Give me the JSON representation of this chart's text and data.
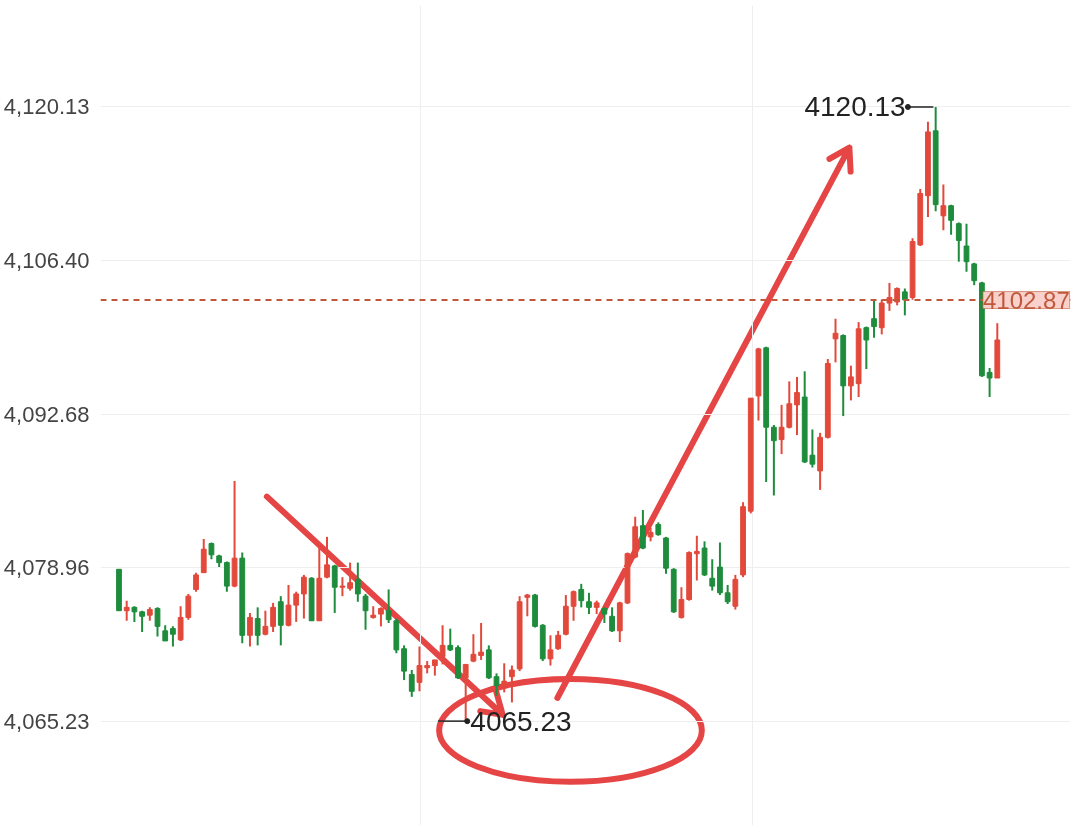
{
  "chart_data": {
    "type": "candlestick",
    "categories": [
      null,
      null,
      null,
      null,
      null,
      null,
      null,
      null,
      null,
      null,
      null,
      null,
      null,
      null,
      null,
      null,
      null,
      null,
      null,
      null,
      null,
      null,
      null,
      null,
      null,
      null,
      null,
      null,
      null,
      null,
      null,
      null,
      null,
      null,
      null,
      null,
      null,
      null,
      null,
      null,
      null,
      null,
      null,
      null,
      null,
      null,
      null,
      null,
      null,
      null,
      null,
      null,
      null,
      null,
      null,
      null,
      null,
      null,
      null,
      null,
      null,
      null,
      null,
      null,
      null,
      null,
      null,
      null,
      null,
      null,
      null,
      null,
      null,
      null,
      null,
      null,
      null,
      null,
      null,
      null,
      null,
      null,
      null,
      null,
      null,
      null,
      null,
      null,
      null,
      null,
      null,
      null,
      null,
      null,
      null,
      null,
      null,
      null,
      null,
      null,
      null,
      null,
      null,
      null,
      null,
      null,
      null,
      null,
      null,
      null,
      null,
      null,
      null,
      null,
      null
    ],
    "ohlc": [
      [
        4078.8,
        4078.8,
        4075.1,
        4075.1
      ],
      [
        4075.1,
        4076.0,
        4074.2,
        4075.4
      ],
      [
        4075.4,
        4075.5,
        4074.1,
        4075.0
      ],
      [
        4075.0,
        4075.1,
        4073.2,
        4074.6
      ],
      [
        4074.7,
        4075.4,
        4074.2,
        4075.2
      ],
      [
        4075.3,
        4075.4,
        4072.8,
        4073.7
      ],
      [
        4073.3,
        4073.8,
        4072.4,
        4072.4
      ],
      [
        4073.5,
        4073.7,
        4071.9,
        4073.0
      ],
      [
        4072.5,
        4075.5,
        4072.4,
        4074.5
      ],
      [
        4074.5,
        4076.6,
        4074.3,
        4076.4
      ],
      [
        4077.0,
        4078.5,
        4076.8,
        4078.3
      ],
      [
        4078.5,
        4081.5,
        4078.5,
        4080.6
      ],
      [
        4081.1,
        4081.2,
        4079.7,
        4080.1
      ],
      [
        4080.0,
        4080.1,
        4079.0,
        4079.4
      ],
      [
        4079.4,
        4079.5,
        4076.8,
        4077.3
      ],
      [
        4077.3,
        4086.7,
        4077.2,
        4079.8
      ],
      [
        4079.8,
        4080.3,
        4072.2,
        4072.9
      ],
      [
        4072.9,
        4074.9,
        4071.9,
        4074.5
      ],
      [
        4074.4,
        4075.4,
        4072.0,
        4072.9
      ],
      [
        4073.0,
        4075.1,
        4072.9,
        4073.7
      ],
      [
        4073.7,
        4075.8,
        4073.2,
        4075.4
      ],
      [
        4075.9,
        4076.4,
        4072.0,
        4073.8
      ],
      [
        4073.8,
        4077.4,
        4073.7,
        4075.6
      ],
      [
        4075.6,
        4076.8,
        4074.1,
        4076.6
      ],
      [
        4076.6,
        4078.3,
        4074.4,
        4078.1
      ],
      [
        4078.0,
        4078.1,
        4074.2,
        4074.2
      ],
      [
        4074.2,
        4081.1,
        4074.2,
        4078.0
      ],
      [
        4078.1,
        4081.7,
        4078.0,
        4079.2
      ],
      [
        4079.1,
        4079.2,
        4074.9,
        4077.2
      ],
      [
        4077.2,
        4078.1,
        4076.4,
        4077.3
      ],
      [
        4077.1,
        4079.4,
        4076.9,
        4077.6
      ],
      [
        4077.9,
        4079.4,
        4075.9,
        4076.6
      ],
      [
        4076.4,
        4076.6,
        4073.4,
        4075.1
      ],
      [
        4074.5,
        4075.5,
        4074.4,
        4074.7
      ],
      [
        4074.8,
        4075.4,
        4073.7,
        4075.3
      ],
      [
        4075.1,
        4077.0,
        4074.0,
        4074.3
      ],
      [
        4074.2,
        4074.4,
        4071.3,
        4071.6
      ],
      [
        4071.7,
        4072.0,
        4068.9,
        4069.7
      ],
      [
        4069.4,
        4069.8,
        4067.4,
        4067.9
      ],
      [
        4068.7,
        4071.9,
        4067.9,
        4070.2
      ],
      [
        4070.0,
        4070.6,
        4069.5,
        4070.2
      ],
      [
        4070.2,
        4070.7,
        4069.3,
        4070.7
      ],
      [
        4071.0,
        4073.8,
        4070.3,
        4072.0
      ],
      [
        4072.0,
        4073.5,
        4071.5,
        4071.6
      ],
      [
        4071.8,
        4072.0,
        4069.0,
        4069.1
      ],
      [
        4069.1,
        4070.3,
        4065.23,
        4070.3
      ],
      [
        4070.6,
        4073.0,
        4070.5,
        4071.2
      ],
      [
        4071.1,
        4074.0,
        4070.7,
        4071.4
      ],
      [
        4071.6,
        4072.0,
        4069.0,
        4069.1
      ],
      [
        4069.2,
        4069.5,
        4067.5,
        4068.4
      ],
      [
        4068.4,
        4070.4,
        4067.8,
        4068.8
      ],
      [
        4069.2,
        4070.2,
        4066.9,
        4069.8
      ],
      [
        4069.9,
        4076.4,
        4069.7,
        4075.9
      ],
      [
        4076.3,
        4076.6,
        4074.6,
        4076.5
      ],
      [
        4076.5,
        4076.6,
        4073.6,
        4073.7
      ],
      [
        4073.8,
        4073.9,
        4070.6,
        4070.8
      ],
      [
        4070.8,
        4072.9,
        4070.2,
        4071.6
      ],
      [
        4071.7,
        4073.3,
        4071.6,
        4072.9
      ],
      [
        4073.0,
        4076.5,
        4072.9,
        4075.5
      ],
      [
        4075.5,
        4076.9,
        4074.2,
        4076.8
      ],
      [
        4077.0,
        4077.5,
        4075.4,
        4076.0
      ],
      [
        4075.9,
        4076.7,
        4074.8,
        4075.4
      ],
      [
        4075.4,
        4076.0,
        4074.8,
        4075.8
      ],
      [
        4075.3,
        4075.4,
        4074.0,
        4074.8
      ],
      [
        4074.6,
        4075.4,
        4073.2,
        4073.3
      ],
      [
        4073.3,
        4075.9,
        4072.3,
        4075.8
      ],
      [
        4075.8,
        4080.3,
        4075.7,
        4080.2
      ],
      [
        4079.9,
        4083.5,
        4079.8,
        4082.6
      ],
      [
        4082.7,
        4084.1,
        4080.6,
        4080.7
      ],
      [
        4081.7,
        4082.5,
        4081.3,
        4082.1
      ],
      [
        4082.8,
        4083.0,
        4081.8,
        4081.9
      ],
      [
        4081.6,
        4081.7,
        4078.4,
        4078.9
      ],
      [
        4078.8,
        4078.9,
        4074.9,
        4075.0
      ],
      [
        4074.5,
        4077.2,
        4074.4,
        4076.1
      ],
      [
        4076.1,
        4080.4,
        4076.0,
        4080.3
      ],
      [
        4080.2,
        4081.8,
        4077.8,
        4080.4
      ],
      [
        4080.7,
        4081.3,
        4078.2,
        4078.3
      ],
      [
        4078.0,
        4079.7,
        4076.9,
        4077.3
      ],
      [
        4079.0,
        4081.2,
        4076.5,
        4076.7
      ],
      [
        4076.7,
        4077.4,
        4075.7,
        4075.9
      ],
      [
        4075.5,
        4078.3,
        4075.2,
        4077.9
      ],
      [
        4078.3,
        4084.8,
        4078.1,
        4084.4
      ],
      [
        4084.0,
        4094.1,
        4083.8,
        4094.1
      ],
      [
        4094.3,
        4098.6,
        4092.1,
        4098.5
      ],
      [
        4098.6,
        4098.7,
        4086.6,
        4091.5
      ],
      [
        4091.5,
        4091.7,
        4085.4,
        4090.3
      ],
      [
        4090.4,
        4093.5,
        4089.1,
        4091.5
      ],
      [
        4091.5,
        4095.6,
        4091.4,
        4093.6
      ],
      [
        4093.5,
        4096.0,
        4090.8,
        4094.6
      ],
      [
        4094.2,
        4096.5,
        4088.3,
        4088.4
      ],
      [
        4089.0,
        4091.3,
        4087.9,
        4088.2
      ],
      [
        4087.6,
        4091.0,
        4085.9,
        4090.6
      ],
      [
        4090.6,
        4097.6,
        4090.5,
        4097.2
      ],
      [
        4099.4,
        4101.2,
        4097.3,
        4099.9
      ],
      [
        4099.7,
        4099.8,
        4092.5,
        4095.2
      ],
      [
        4095.2,
        4097.0,
        4093.9,
        4096.0
      ],
      [
        4095.4,
        4100.9,
        4094.2,
        4100.3
      ],
      [
        4100.4,
        4100.5,
        4096.7,
        4099.3
      ],
      [
        4101.2,
        4102.9,
        4099.5,
        4100.5
      ],
      [
        4100.4,
        4102.9,
        4099.8,
        4102.6
      ],
      [
        4102.6,
        4104.4,
        4101.9,
        4103.1
      ],
      [
        4102.7,
        4104.0,
        4102.4,
        4103.9
      ],
      [
        4103.6,
        4103.9,
        4101.5,
        4102.9
      ],
      [
        4103.1,
        4108.4,
        4102.9,
        4108.1
      ],
      [
        4107.8,
        4112.8,
        4107.7,
        4112.4
      ],
      [
        4112.2,
        4118.8,
        4110.3,
        4117.9
      ],
      [
        4118.0,
        4120.13,
        4110.8,
        4111.4
      ],
      [
        4110.4,
        4113.2,
        4109.1,
        4111.3
      ],
      [
        4111.3,
        4111.4,
        4108.7,
        4110.0
      ],
      [
        4109.7,
        4109.8,
        4106.3,
        4108.2
      ],
      [
        4107.7,
        4109.7,
        4105.4,
        4106.3
      ],
      [
        4106.1,
        4106.2,
        4104.2,
        4104.6
      ],
      [
        4104.4,
        4104.5,
        4096.0,
        4096.1
      ],
      [
        4096.4,
        4096.8,
        4094.2,
        4095.9
      ],
      [
        4095.9,
        4100.8,
        4095.9,
        4099.3
      ]
    ],
    "colors": [
      "#1e8c3c",
      "#e2493b",
      "#1e8c3c",
      "#1e8c3c",
      "#e2493b",
      "#1e8c3c",
      "#1e8c3c",
      "#1e8c3c",
      "#e2493b",
      "#e2493b",
      "#e2493b",
      "#e2493b",
      "#1e8c3c",
      "#1e8c3c",
      "#1e8c3c",
      "#e2493b",
      "#1e8c3c",
      "#e2493b",
      "#1e8c3c",
      "#e2493b",
      "#e2493b",
      "#1e8c3c",
      "#e2493b",
      "#e2493b",
      "#e2493b",
      "#1e8c3c",
      "#e2493b",
      "#e2493b",
      "#1e8c3c",
      "#e2493b",
      "#e2493b",
      "#1e8c3c",
      "#1e8c3c",
      "#e2493b",
      "#e2493b",
      "#1e8c3c",
      "#1e8c3c",
      "#1e8c3c",
      "#1e8c3c",
      "#e2493b",
      "#e2493b",
      "#e2493b",
      "#e2493b",
      "#1e8c3c",
      "#1e8c3c",
      "#e2493b",
      "#e2493b",
      "#e2493b",
      "#1e8c3c",
      "#1e8c3c",
      "#e2493b",
      "#e2493b",
      "#e2493b",
      "#e2493b",
      "#1e8c3c",
      "#1e8c3c",
      "#e2493b",
      "#e2493b",
      "#e2493b",
      "#e2493b",
      "#1e8c3c",
      "#1e8c3c",
      "#e2493b",
      "#1e8c3c",
      "#1e8c3c",
      "#e2493b",
      "#e2493b",
      "#e2493b",
      "#1e8c3c",
      "#e2493b",
      "#1e8c3c",
      "#1e8c3c",
      "#1e8c3c",
      "#e2493b",
      "#e2493b",
      "#e2493b",
      "#1e8c3c",
      "#1e8c3c",
      "#1e8c3c",
      "#1e8c3c",
      "#e2493b",
      "#e2493b",
      "#e2493b",
      "#e2493b",
      "#1e8c3c",
      "#1e8c3c",
      "#e2493b",
      "#e2493b",
      "#e2493b",
      "#1e8c3c",
      "#1e8c3c",
      "#e2493b",
      "#e2493b",
      "#e2493b",
      "#1e8c3c",
      "#e2493b",
      "#e2493b",
      "#1e8c3c",
      "#1e8c3c",
      "#e2493b",
      "#e2493b",
      "#e2493b",
      "#1e8c3c",
      "#e2493b",
      "#e2493b",
      "#e2493b",
      "#1e8c3c",
      "#e2493b",
      "#1e8c3c",
      "#1e8c3c",
      "#1e8c3c",
      "#1e8c3c",
      "#1e8c3c",
      "#1e8c3c",
      "#e2493b"
    ],
    "ylim": [
      4055.9,
      4129.2
    ],
    "yticks": [
      {
        "value": 4065.23,
        "label": "4,065.23"
      },
      {
        "value": 4078.96,
        "label": "4,078.96"
      },
      {
        "value": 4092.68,
        "label": "4,092.68"
      },
      {
        "value": 4106.4,
        "label": "4,106.40"
      },
      {
        "value": 4120.13,
        "label": "4,120.13"
      }
    ],
    "tick_labels": "y",
    "grid": true,
    "ref_lines": [
      {
        "axis": "y",
        "value": 4102.87,
        "label": "4102.87",
        "color": "#c0583a",
        "line_style": "dashed"
      }
    ],
    "annotations": [
      "4120.13",
      "4065.23"
    ]
  }
}
